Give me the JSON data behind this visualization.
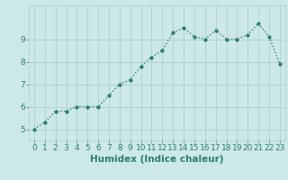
{
  "xlabel": "Humidex (Indice chaleur)",
  "ylabel": "",
  "x": [
    0,
    1,
    2,
    3,
    4,
    5,
    6,
    7,
    8,
    9,
    10,
    11,
    12,
    13,
    14,
    15,
    16,
    17,
    18,
    19,
    20,
    21,
    22,
    23
  ],
  "y": [
    5.0,
    5.3,
    5.8,
    5.8,
    6.0,
    6.0,
    6.0,
    6.5,
    7.0,
    7.2,
    7.8,
    8.2,
    8.5,
    9.3,
    9.5,
    9.1,
    9.0,
    9.4,
    9.0,
    9.0,
    9.2,
    9.7,
    9.1,
    7.9
  ],
  "line_color": "#2e7d6e",
  "marker": "o",
  "marker_size": 2.5,
  "line_width": 1.0,
  "bg_color": "#cce8e8",
  "grid_color": "#aad0d0",
  "tick_color": "#2e7d6e",
  "label_color": "#2e7d6e",
  "ylim": [
    4.5,
    10.5
  ],
  "xlim": [
    -0.5,
    23.5
  ],
  "yticks": [
    5,
    6,
    7,
    8,
    9
  ],
  "xticks": [
    0,
    1,
    2,
    3,
    4,
    5,
    6,
    7,
    8,
    9,
    10,
    11,
    12,
    13,
    14,
    15,
    16,
    17,
    18,
    19,
    20,
    21,
    22,
    23
  ],
  "xlabel_fontsize": 7.5,
  "tick_fontsize": 6.5
}
